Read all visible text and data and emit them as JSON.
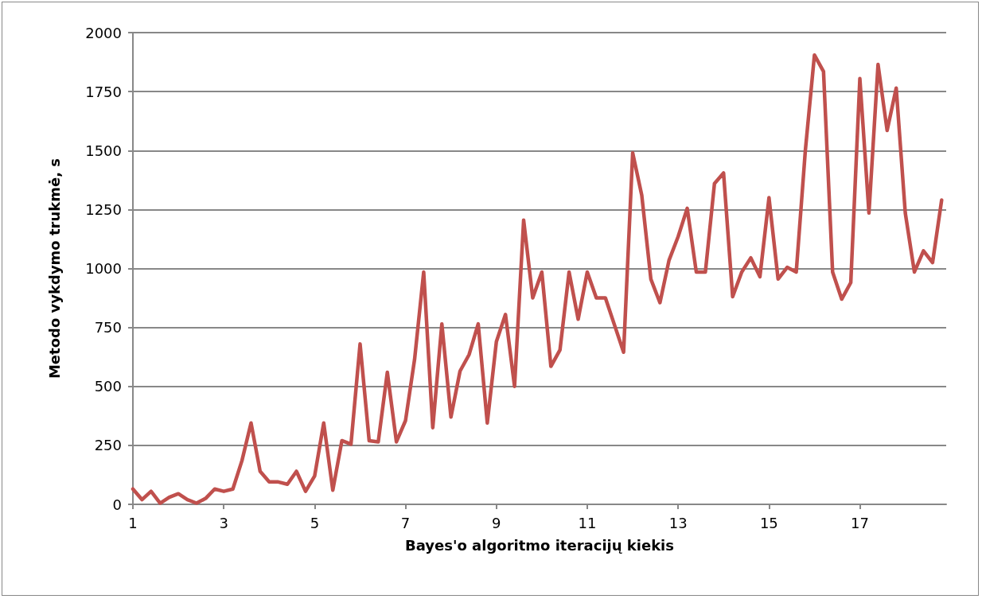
{
  "chart_data": {
    "type": "line",
    "xlabel": "Bayes'o algoritmo iteracijų kiekis",
    "ylabel": "Metodo vykdymo trukmė, s",
    "x": [
      1,
      1.2,
      1.4,
      1.6,
      1.8,
      2,
      2.2,
      2.4,
      2.6,
      2.8,
      3,
      3.2,
      3.4,
      3.6,
      3.8,
      4,
      4.2,
      4.4,
      4.6,
      4.8,
      5,
      5.2,
      5.4,
      5.6,
      5.8,
      6,
      6.2,
      6.4,
      6.6,
      6.8,
      7,
      7.2,
      7.4,
      7.6,
      7.8,
      8,
      8.2,
      8.4,
      8.6,
      8.8,
      9,
      9.2,
      9.4,
      9.6,
      9.8,
      10,
      10.2,
      10.4,
      10.6,
      10.8,
      11,
      11.2,
      11.4,
      11.6,
      11.8,
      12,
      12.2,
      12.4,
      12.6,
      12.8,
      13,
      13.2,
      13.4,
      13.6,
      13.8,
      14,
      14.2,
      14.4,
      14.6,
      14.8,
      15,
      15.2,
      15.4,
      15.6,
      15.8,
      16,
      16.2,
      16.4,
      16.6,
      16.8,
      17,
      17.2,
      17.4,
      17.6,
      17.8,
      18,
      18.2,
      18.4,
      18.6,
      18.8
    ],
    "series": [
      {
        "color": "#c0504d",
        "values": [
          65,
          20,
          55,
          5,
          30,
          45,
          20,
          5,
          25,
          65,
          55,
          65,
          185,
          345,
          140,
          95,
          95,
          85,
          140,
          55,
          120,
          345,
          60,
          270,
          255,
          680,
          270,
          265,
          560,
          265,
          355,
          615,
          985,
          325,
          765,
          370,
          565,
          635,
          765,
          345,
          690,
          805,
          500,
          1205,
          875,
          985,
          585,
          655,
          985,
          785,
          985,
          875,
          875,
          760,
          645,
          1490,
          1310,
          955,
          855,
          1035,
          1135,
          1255,
          985,
          985,
          1360,
          1405,
          880,
          985,
          1045,
          965,
          1300,
          955,
          1005,
          985,
          1500,
          1905,
          1835,
          985,
          870,
          940,
          1805,
          1235,
          1865,
          1585,
          1765,
          1235,
          985,
          1075,
          1025,
          1290
        ]
      }
    ],
    "xlim": [
      1,
      18.9
    ],
    "xticks": [
      1,
      3,
      5,
      7,
      9,
      11,
      13,
      15,
      17
    ],
    "ylim": [
      0,
      2000
    ],
    "yticks": [
      0,
      250,
      500,
      750,
      1000,
      1250,
      1500,
      1750,
      2000
    ],
    "grid": "y",
    "marker": "none",
    "line_style": "solid"
  }
}
